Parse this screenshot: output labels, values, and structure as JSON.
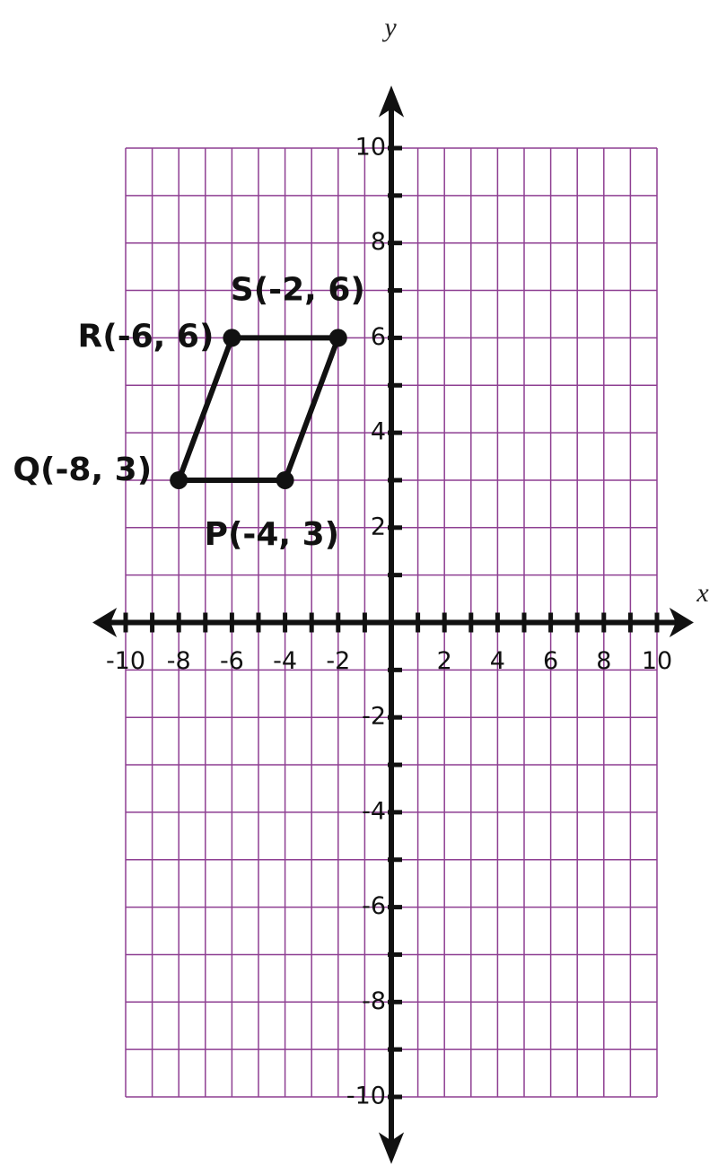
{
  "chart_data": {
    "type": "polygon",
    "xlabel": "x",
    "ylabel": "y",
    "xlim": [
      -10,
      10
    ],
    "ylim": [
      -10,
      10
    ],
    "xticks": [
      -10,
      -8,
      -6,
      -4,
      -2,
      2,
      4,
      6,
      8,
      10
    ],
    "yticks": [
      -10,
      -8,
      -6,
      -4,
      -2,
      2,
      4,
      6,
      8,
      10
    ],
    "xminor": [
      -10,
      -9,
      -8,
      -7,
      -6,
      -5,
      -4,
      -3,
      -2,
      -1,
      0,
      1,
      2,
      3,
      4,
      5,
      6,
      7,
      8,
      9,
      10
    ],
    "yminor": [
      -10,
      -9,
      -8,
      -7,
      -6,
      -5,
      -4,
      -3,
      -2,
      -1,
      0,
      1,
      2,
      3,
      4,
      5,
      6,
      7,
      8,
      9,
      10
    ],
    "grid": true,
    "grid_color": "#8e3f92",
    "series": [
      {
        "color": "#111111",
        "closed": true,
        "labels": [
          "P(-4, 3)",
          "Q(-8, 3)",
          "R(-6, 6)",
          "S(-2, 6)"
        ],
        "x": [
          -4,
          -8,
          -6,
          -2
        ],
        "y": [
          3,
          3,
          6,
          6
        ]
      }
    ]
  }
}
